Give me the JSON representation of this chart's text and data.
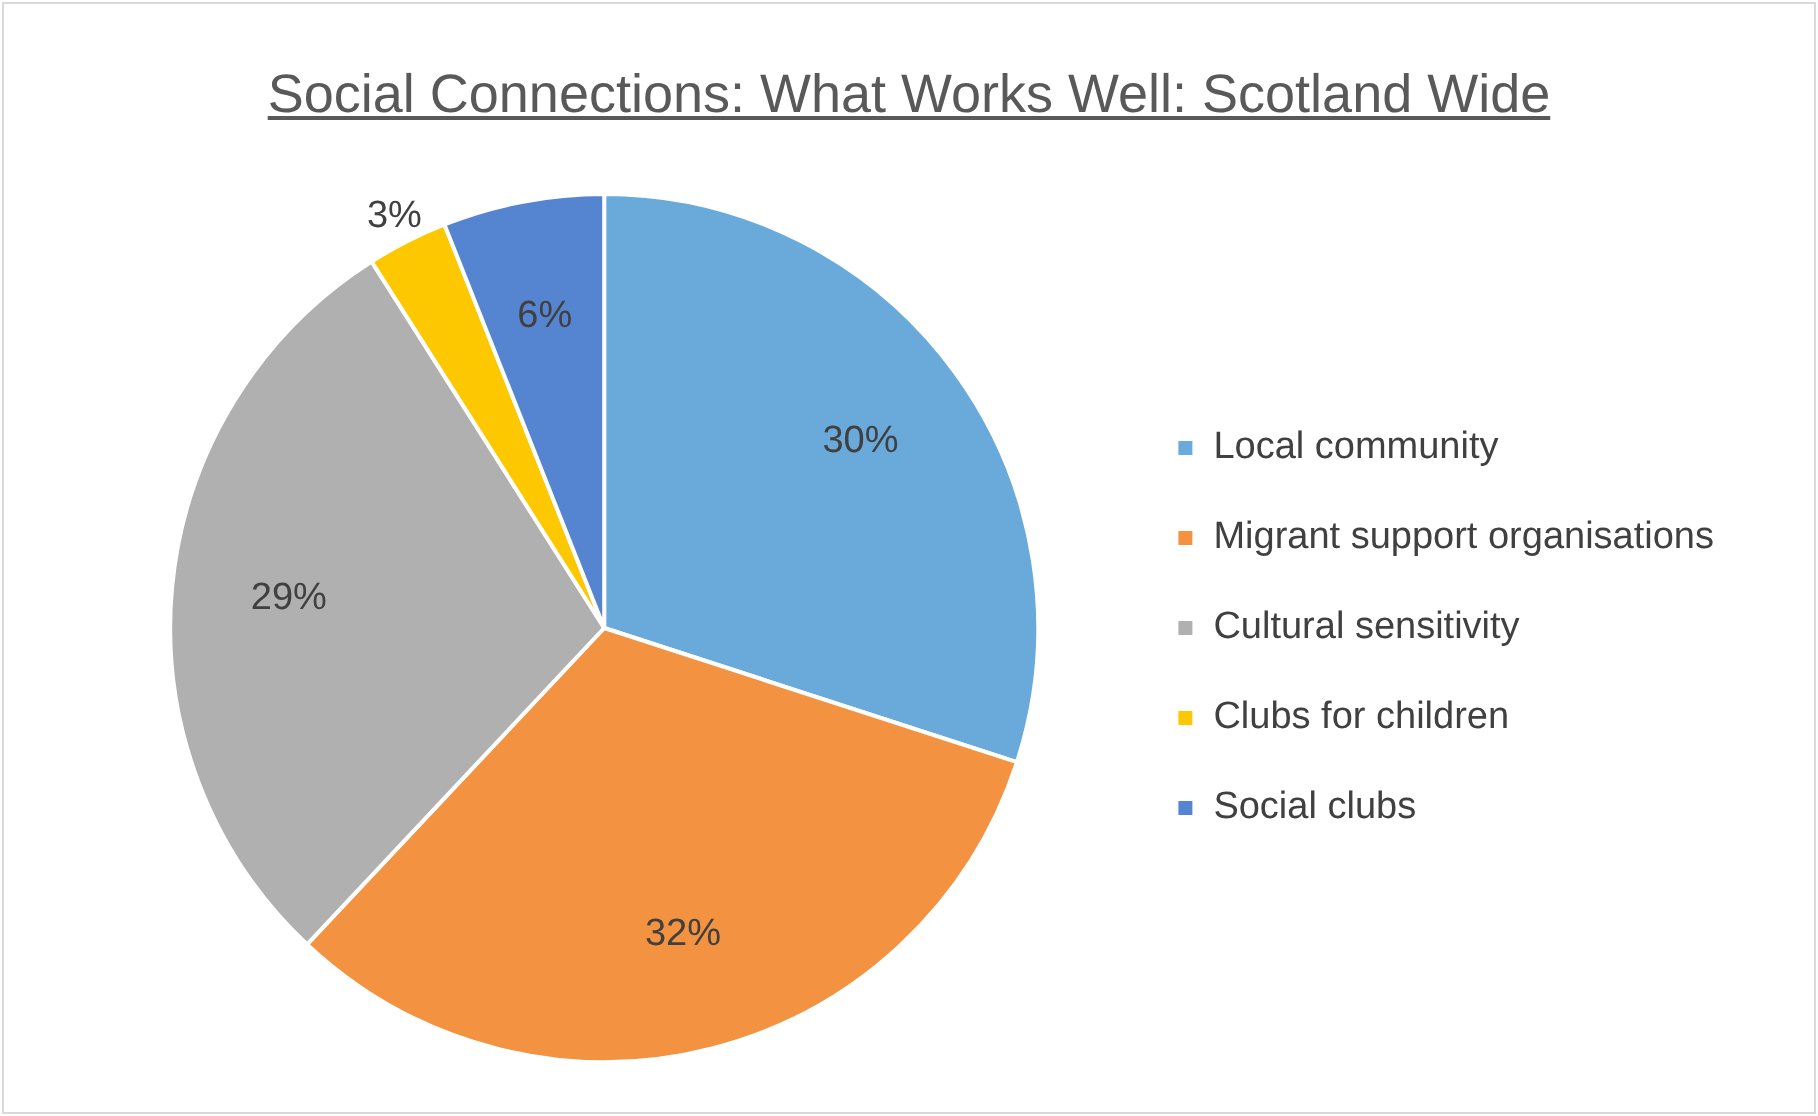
{
  "chart_data": {
    "type": "pie",
    "title": "Social Connections: What Works Well: Scotland Wide",
    "categories": [
      "Local community",
      "Migrant support organisations",
      "Cultural sensitivity",
      "Clubs for children",
      "Social clubs"
    ],
    "values": [
      30,
      32,
      29,
      3,
      6
    ],
    "colors": [
      "#6aaadb",
      "#f39240",
      "#b0b0b0",
      "#fec800",
      "#5585d0"
    ],
    "value_labels": [
      "30%",
      "32%",
      "29%",
      "3%",
      "6%"
    ],
    "legend": "right"
  }
}
